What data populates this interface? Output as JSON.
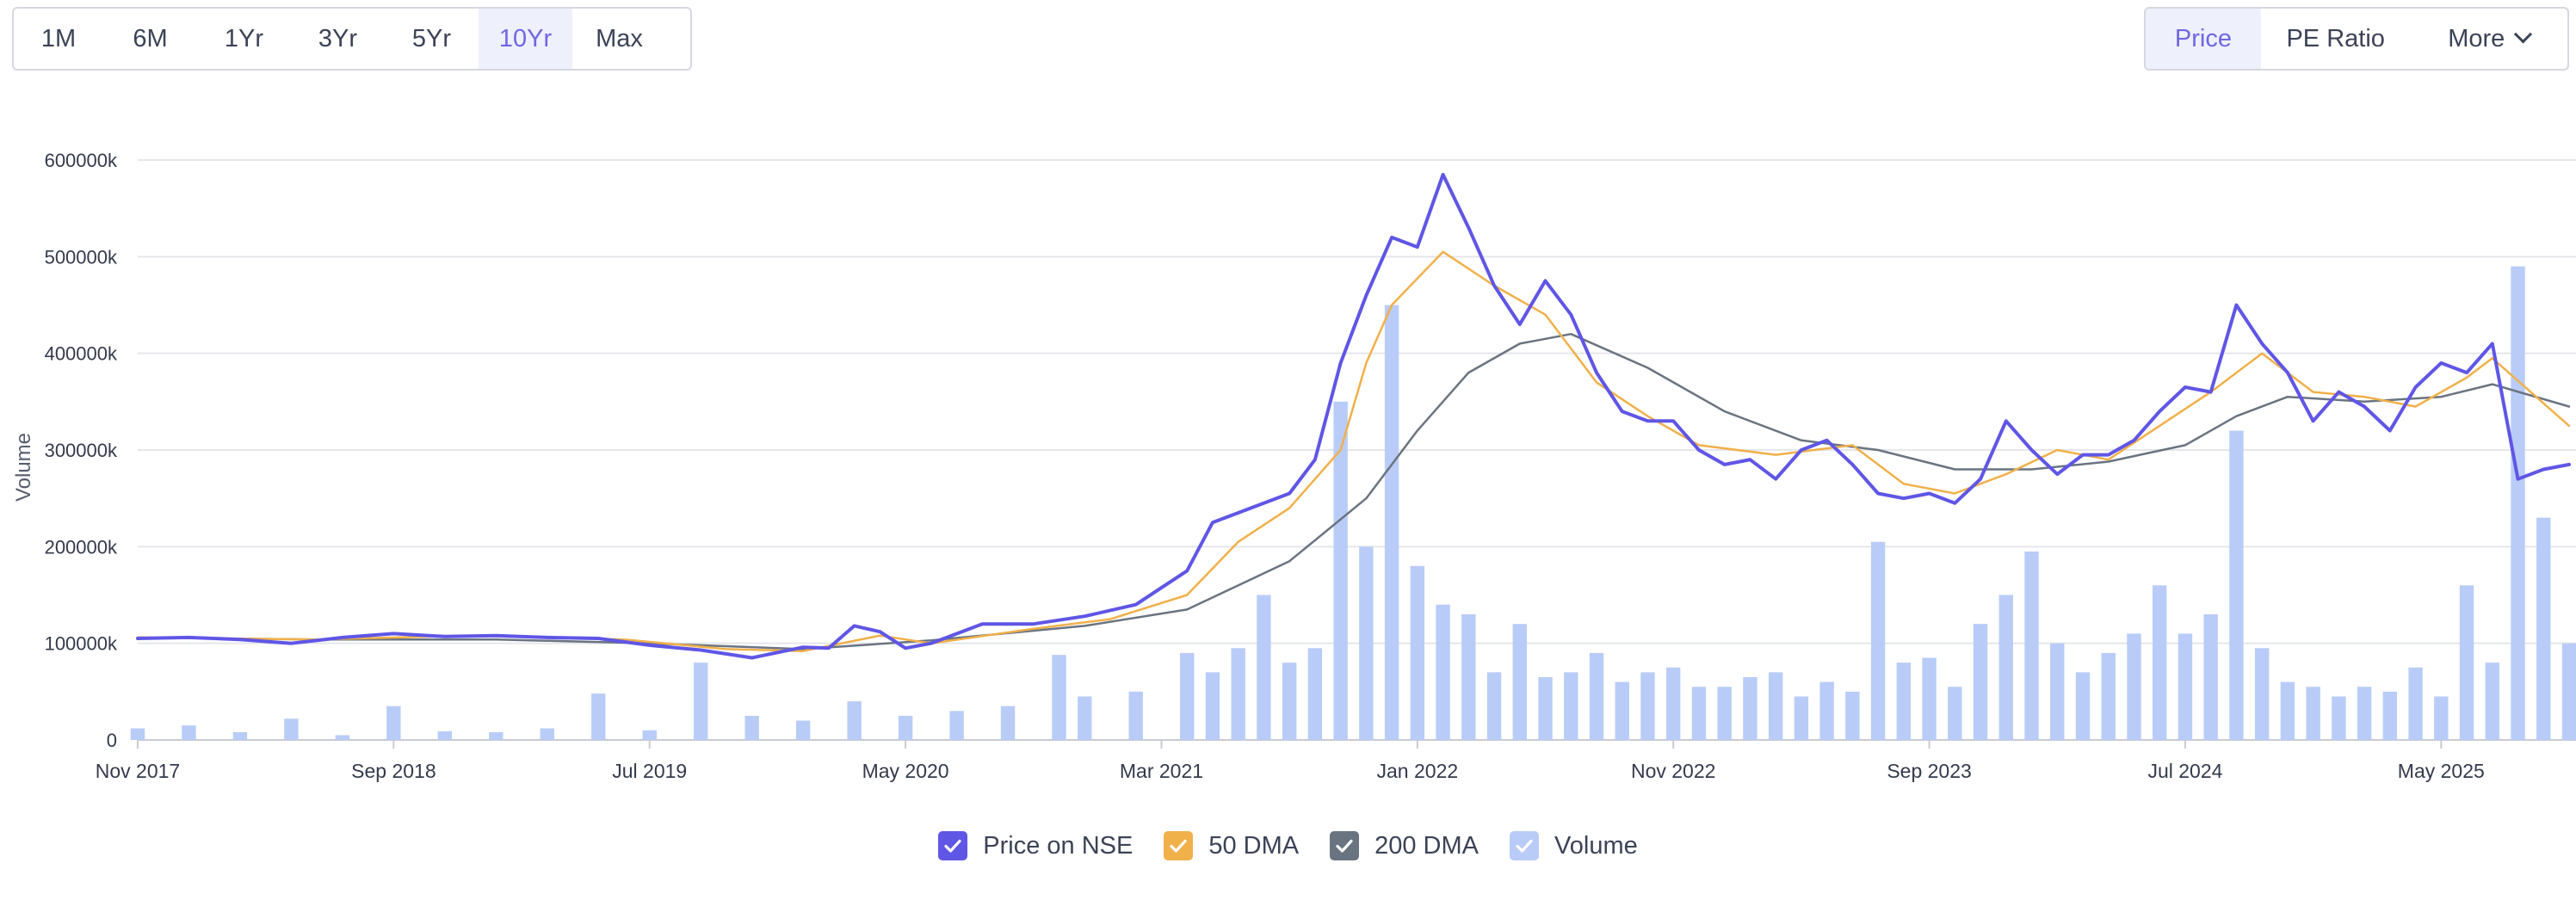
{
  "range_buttons": [
    {
      "label": "1M",
      "active": false
    },
    {
      "label": "6M",
      "active": false
    },
    {
      "label": "1Yr",
      "active": false
    },
    {
      "label": "3Yr",
      "active": false
    },
    {
      "label": "5Yr",
      "active": false
    },
    {
      "label": "10Yr",
      "active": true
    },
    {
      "label": "Max",
      "active": false
    }
  ],
  "metric_buttons": {
    "price": "Price",
    "pe_ratio": "PE Ratio",
    "more": "More",
    "more_icon": "chevron-down-icon"
  },
  "colors": {
    "price": "#5f56e6",
    "dma50": "#f0b04a",
    "dma200": "#6a7481",
    "volume": "#b9ccf8",
    "active_button_bg": "#eef0fb",
    "active_button_text": "#6f67e3"
  },
  "legend": [
    {
      "label": "Price on NSE",
      "color": "#5f56e6"
    },
    {
      "label": "50 DMA",
      "color": "#f0b04a"
    },
    {
      "label": "200 DMA",
      "color": "#6a7481"
    },
    {
      "label": "Volume",
      "color": "#b9ccf8"
    }
  ],
  "chart_data": {
    "type": "line",
    "ylabel": "Volume",
    "y_tick_labels": [
      "0",
      "100000k",
      "200000k",
      "300000k",
      "400000k",
      "500000k",
      "600000k"
    ],
    "ylim": [
      0,
      600000
    ],
    "x_tick_labels": [
      "Nov 2017",
      "Sep 2018",
      "Jul 2019",
      "May 2020",
      "Mar 2021",
      "Jan 2022",
      "Nov 2022",
      "Sep 2023",
      "Jul 2024",
      "May 2025"
    ],
    "xlim": [
      "2017-11",
      "2025-10"
    ],
    "grid": true,
    "legend_position": "bottom",
    "series": [
      {
        "name": "Price on NSE",
        "points": [
          [
            "2017-11",
            105000
          ],
          [
            "2018-01",
            106000
          ],
          [
            "2018-03",
            104000
          ],
          [
            "2018-05",
            100000
          ],
          [
            "2018-07",
            106000
          ],
          [
            "2018-09",
            110000
          ],
          [
            "2018-11",
            107000
          ],
          [
            "2019-01",
            108000
          ],
          [
            "2019-03",
            106000
          ],
          [
            "2019-05",
            105000
          ],
          [
            "2019-07",
            98000
          ],
          [
            "2019-09",
            93000
          ],
          [
            "2019-11",
            85000
          ],
          [
            "2020-01",
            96000
          ],
          [
            "2020-02",
            95000
          ],
          [
            "2020-03",
            118000
          ],
          [
            "2020-04",
            112000
          ],
          [
            "2020-05",
            95000
          ],
          [
            "2020-06",
            100000
          ],
          [
            "2020-08",
            120000
          ],
          [
            "2020-10",
            120000
          ],
          [
            "2020-12",
            128000
          ],
          [
            "2021-02",
            140000
          ],
          [
            "2021-04",
            175000
          ],
          [
            "2021-05",
            225000
          ],
          [
            "2021-06",
            235000
          ],
          [
            "2021-07",
            245000
          ],
          [
            "2021-08",
            255000
          ],
          [
            "2021-09",
            290000
          ],
          [
            "2021-10",
            390000
          ],
          [
            "2021-11",
            460000
          ],
          [
            "2021-12",
            520000
          ],
          [
            "2022-01",
            510000
          ],
          [
            "2022-02",
            585000
          ],
          [
            "2022-03",
            530000
          ],
          [
            "2022-04",
            470000
          ],
          [
            "2022-05",
            430000
          ],
          [
            "2022-06",
            475000
          ],
          [
            "2022-07",
            440000
          ],
          [
            "2022-08",
            380000
          ],
          [
            "2022-09",
            340000
          ],
          [
            "2022-10",
            330000
          ],
          [
            "2022-11",
            330000
          ],
          [
            "2022-12",
            300000
          ],
          [
            "2023-01",
            285000
          ],
          [
            "2023-02",
            290000
          ],
          [
            "2023-03",
            270000
          ],
          [
            "2023-04",
            300000
          ],
          [
            "2023-05",
            310000
          ],
          [
            "2023-06",
            285000
          ],
          [
            "2023-07",
            255000
          ],
          [
            "2023-08",
            250000
          ],
          [
            "2023-09",
            255000
          ],
          [
            "2023-10",
            245000
          ],
          [
            "2023-11",
            270000
          ],
          [
            "2023-12",
            330000
          ],
          [
            "2024-01",
            300000
          ],
          [
            "2024-02",
            275000
          ],
          [
            "2024-03",
            295000
          ],
          [
            "2024-04",
            295000
          ],
          [
            "2024-05",
            310000
          ],
          [
            "2024-06",
            340000
          ],
          [
            "2024-07",
            365000
          ],
          [
            "2024-08",
            360000
          ],
          [
            "2024-09",
            450000
          ],
          [
            "2024-10",
            410000
          ],
          [
            "2024-11",
            380000
          ],
          [
            "2024-12",
            330000
          ],
          [
            "2025-01",
            360000
          ],
          [
            "2025-02",
            345000
          ],
          [
            "2025-03",
            320000
          ],
          [
            "2025-04",
            365000
          ],
          [
            "2025-05",
            390000
          ],
          [
            "2025-06",
            380000
          ],
          [
            "2025-07",
            410000
          ],
          [
            "2025-08",
            270000
          ],
          [
            "2025-09",
            280000
          ],
          [
            "2025-10",
            285000
          ]
        ]
      },
      {
        "name": "50 DMA",
        "points": [
          [
            "2017-11",
            106000
          ],
          [
            "2018-06",
            104000
          ],
          [
            "2018-12",
            108000
          ],
          [
            "2019-06",
            104000
          ],
          [
            "2019-10",
            94000
          ],
          [
            "2020-01",
            92000
          ],
          [
            "2020-04",
            108000
          ],
          [
            "2020-06",
            100000
          ],
          [
            "2020-10",
            115000
          ],
          [
            "2021-01",
            125000
          ],
          [
            "2021-04",
            150000
          ],
          [
            "2021-06",
            205000
          ],
          [
            "2021-08",
            240000
          ],
          [
            "2021-10",
            300000
          ],
          [
            "2021-11",
            390000
          ],
          [
            "2021-12",
            450000
          ],
          [
            "2022-02",
            505000
          ],
          [
            "2022-04",
            470000
          ],
          [
            "2022-06",
            440000
          ],
          [
            "2022-08",
            370000
          ],
          [
            "2022-10",
            335000
          ],
          [
            "2022-12",
            305000
          ],
          [
            "2023-03",
            295000
          ],
          [
            "2023-06",
            305000
          ],
          [
            "2023-08",
            265000
          ],
          [
            "2023-10",
            255000
          ],
          [
            "2023-12",
            275000
          ],
          [
            "2024-02",
            300000
          ],
          [
            "2024-04",
            290000
          ],
          [
            "2024-06",
            325000
          ],
          [
            "2024-08",
            360000
          ],
          [
            "2024-10",
            400000
          ],
          [
            "2024-12",
            360000
          ],
          [
            "2025-02",
            355000
          ],
          [
            "2025-04",
            345000
          ],
          [
            "2025-06",
            375000
          ],
          [
            "2025-07",
            395000
          ],
          [
            "2025-10",
            325000
          ]
        ]
      },
      {
        "name": "200 DMA",
        "points": [
          [
            "2017-11",
            106000
          ],
          [
            "2018-06",
            104000
          ],
          [
            "2019-01",
            104000
          ],
          [
            "2019-07",
            100000
          ],
          [
            "2020-01",
            94000
          ],
          [
            "2020-06",
            103000
          ],
          [
            "2020-12",
            118000
          ],
          [
            "2021-04",
            135000
          ],
          [
            "2021-08",
            185000
          ],
          [
            "2021-11",
            250000
          ],
          [
            "2022-01",
            320000
          ],
          [
            "2022-03",
            380000
          ],
          [
            "2022-05",
            410000
          ],
          [
            "2022-07",
            420000
          ],
          [
            "2022-10",
            385000
          ],
          [
            "2023-01",
            340000
          ],
          [
            "2023-04",
            310000
          ],
          [
            "2023-07",
            300000
          ],
          [
            "2023-10",
            280000
          ],
          [
            "2024-01",
            280000
          ],
          [
            "2024-04",
            288000
          ],
          [
            "2024-07",
            305000
          ],
          [
            "2024-09",
            335000
          ],
          [
            "2024-11",
            355000
          ],
          [
            "2025-02",
            350000
          ],
          [
            "2025-05",
            355000
          ],
          [
            "2025-07",
            368000
          ],
          [
            "2025-10",
            345000
          ]
        ]
      },
      {
        "name": "Volume",
        "type": "bar",
        "points": [
          [
            "2017-11",
            12000
          ],
          [
            "2018-01",
            15000
          ],
          [
            "2018-03",
            8000
          ],
          [
            "2018-05",
            22000
          ],
          [
            "2018-07",
            5000
          ],
          [
            "2018-09",
            35000
          ],
          [
            "2018-11",
            9000
          ],
          [
            "2019-01",
            8000
          ],
          [
            "2019-03",
            12000
          ],
          [
            "2019-05",
            48000
          ],
          [
            "2019-07",
            10000
          ],
          [
            "2019-09",
            80000
          ],
          [
            "2019-11",
            25000
          ],
          [
            "2020-01",
            20000
          ],
          [
            "2020-03",
            40000
          ],
          [
            "2020-05",
            25000
          ],
          [
            "2020-07",
            30000
          ],
          [
            "2020-09",
            35000
          ],
          [
            "2020-11",
            88000
          ],
          [
            "2020-12",
            45000
          ],
          [
            "2021-02",
            50000
          ],
          [
            "2021-04",
            90000
          ],
          [
            "2021-05",
            70000
          ],
          [
            "2021-06",
            95000
          ],
          [
            "2021-07",
            150000
          ],
          [
            "2021-08",
            80000
          ],
          [
            "2021-09",
            95000
          ],
          [
            "2021-10",
            350000
          ],
          [
            "2021-11",
            200000
          ],
          [
            "2021-12",
            450000
          ],
          [
            "2022-01",
            180000
          ],
          [
            "2022-02",
            140000
          ],
          [
            "2022-03",
            130000
          ],
          [
            "2022-04",
            70000
          ],
          [
            "2022-05",
            120000
          ],
          [
            "2022-06",
            65000
          ],
          [
            "2022-07",
            70000
          ],
          [
            "2022-08",
            90000
          ],
          [
            "2022-09",
            60000
          ],
          [
            "2022-10",
            70000
          ],
          [
            "2022-11",
            75000
          ],
          [
            "2022-12",
            55000
          ],
          [
            "2023-01",
            55000
          ],
          [
            "2023-02",
            65000
          ],
          [
            "2023-03",
            70000
          ],
          [
            "2023-04",
            45000
          ],
          [
            "2023-05",
            60000
          ],
          [
            "2023-06",
            50000
          ],
          [
            "2023-07",
            205000
          ],
          [
            "2023-08",
            80000
          ],
          [
            "2023-09",
            85000
          ],
          [
            "2023-10",
            55000
          ],
          [
            "2023-11",
            120000
          ],
          [
            "2023-12",
            150000
          ],
          [
            "2024-01",
            195000
          ],
          [
            "2024-02",
            100000
          ],
          [
            "2024-03",
            70000
          ],
          [
            "2024-04",
            90000
          ],
          [
            "2024-05",
            110000
          ],
          [
            "2024-06",
            160000
          ],
          [
            "2024-07",
            110000
          ],
          [
            "2024-08",
            130000
          ],
          [
            "2024-09",
            320000
          ],
          [
            "2024-10",
            95000
          ],
          [
            "2024-11",
            60000
          ],
          [
            "2024-12",
            55000
          ],
          [
            "2025-01",
            45000
          ],
          [
            "2025-02",
            55000
          ],
          [
            "2025-03",
            50000
          ],
          [
            "2025-04",
            75000
          ],
          [
            "2025-05",
            45000
          ],
          [
            "2025-06",
            160000
          ],
          [
            "2025-07",
            80000
          ],
          [
            "2025-08",
            490000
          ],
          [
            "2025-09",
            230000
          ],
          [
            "2025-10",
            100000
          ]
        ]
      }
    ]
  }
}
